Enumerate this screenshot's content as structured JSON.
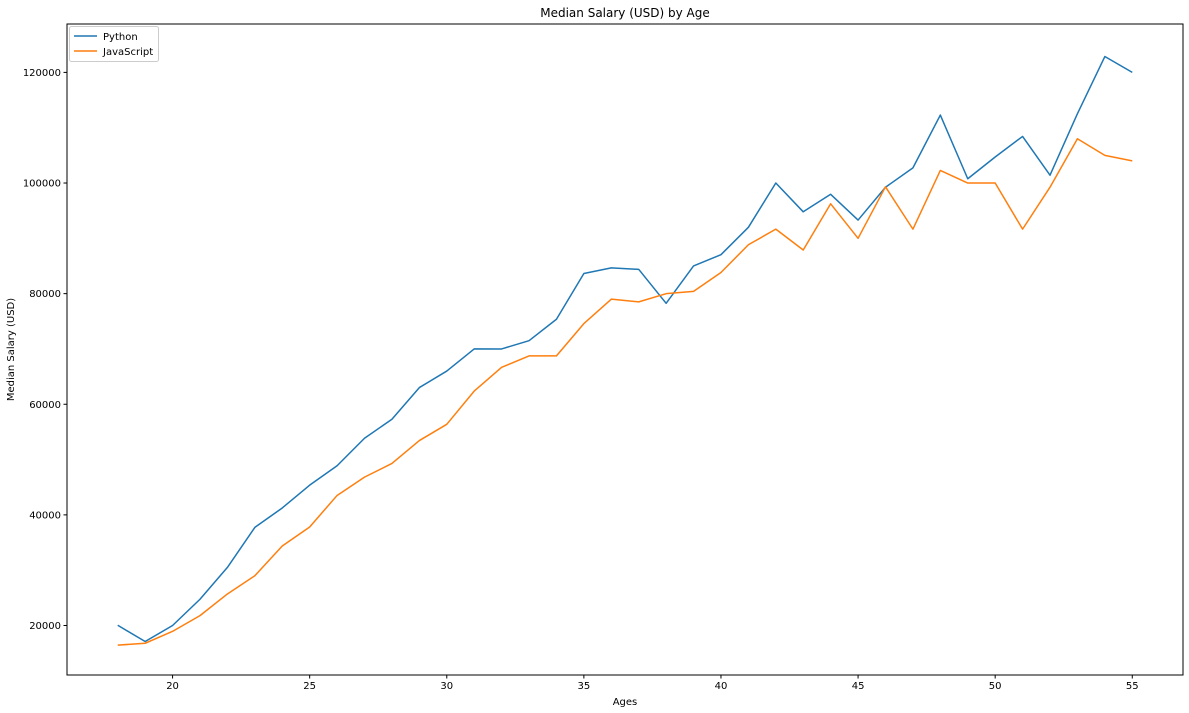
{
  "chart_data": {
    "type": "line",
    "title": "Median Salary (USD) by Age",
    "xlabel": "Ages",
    "ylabel": "Median Salary (USD)",
    "x": [
      18,
      19,
      20,
      21,
      22,
      23,
      24,
      25,
      26,
      27,
      28,
      29,
      30,
      31,
      32,
      33,
      34,
      35,
      36,
      37,
      38,
      39,
      40,
      41,
      42,
      43,
      44,
      45,
      46,
      47,
      48,
      49,
      50,
      51,
      52,
      53,
      54,
      55
    ],
    "xlim": [
      16.15,
      56.85
    ],
    "ylim": [
      11050,
      128750
    ],
    "xticks": [
      20,
      25,
      30,
      35,
      40,
      45,
      50,
      55
    ],
    "yticks": [
      20000,
      40000,
      60000,
      80000,
      100000,
      120000
    ],
    "grid": false,
    "legend_position": "top-left",
    "series": [
      {
        "name": "Python",
        "color": "#1f77b4",
        "values": [
          20046,
          17100,
          20000,
          24744,
          30500,
          37732,
          41247,
          45372,
          48876,
          53850,
          57287,
          63016,
          65998,
          70003,
          70000,
          71496,
          75370,
          83640,
          84666,
          84392,
          78254,
          85000,
          87038,
          91991,
          100000,
          94796,
          97962,
          93302,
          99240,
          102736,
          112285,
          100771,
          104708,
          108423,
          101407,
          112542,
          122870,
          120000
        ]
      },
      {
        "name": "JavaScript",
        "color": "#ff7f0e",
        "values": [
          16446,
          16791,
          18942,
          21780,
          25704,
          29000,
          34372,
          37810,
          43515,
          46823,
          49293,
          53437,
          56373,
          62375,
          66674,
          68745,
          68746,
          74583,
          79000,
          78508,
          79996,
          80403,
          83820,
          88833,
          91660,
          87892,
          96243,
          90000,
          99313,
          91660,
          102264,
          100000,
          100000,
          91660,
          99240,
          108000,
          105000,
          104000
        ]
      }
    ]
  }
}
